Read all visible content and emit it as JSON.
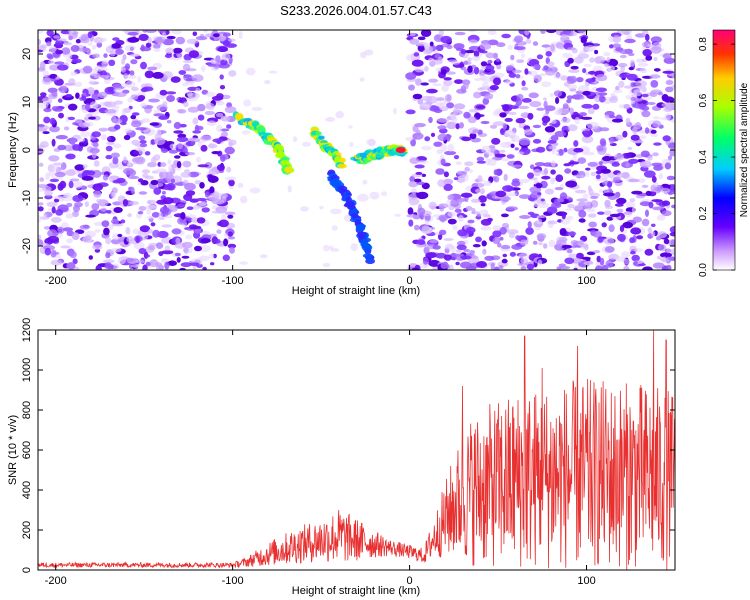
{
  "title": "S233.2026.004.01.57.C43",
  "chart_data": [
    {
      "type": "heatmap",
      "xlabel": "Height of straight line (km)",
      "ylabel": "Frequency (Hz)",
      "xlim": [
        -210,
        150
      ],
      "ylim": [
        -25,
        25
      ],
      "xticks": [
        -200,
        -100,
        0,
        100
      ],
      "yticks": [
        -20,
        -10,
        0,
        10,
        20
      ],
      "colorbar": {
        "label": "Normalized spectral amplitude",
        "range": [
          0.0,
          0.85
        ],
        "ticks": [
          "0.0",
          "0.2",
          "0.4",
          "0.6",
          "0.8"
        ]
      },
      "ridge": {
        "segments": [
          {
            "x": [
              -98,
              -84,
              -74,
              -68
            ],
            "y": [
              7,
              4,
              0,
              -5
            ]
          },
          {
            "x": [
              -55,
              -45,
              -38
            ],
            "y": [
              4,
              0,
              -3
            ]
          },
          {
            "x": [
              -30,
              -20,
              -10,
              -3
            ],
            "y": [
              -2,
              -1,
              0,
              0
            ]
          },
          {
            "x": [
              -45,
              -35,
              -28,
              -22
            ],
            "y": [
              -5,
              -10,
              -16,
              -23
            ]
          }
        ],
        "peak": {
          "x": -5,
          "y": 0
        }
      },
      "blank_region": {
        "x": [
          -100,
          0
        ]
      }
    },
    {
      "type": "line",
      "xlabel": "Height of straight line (km)",
      "ylabel": "SNR (10 * v/v)",
      "xlim": [
        -210,
        150
      ],
      "ylim": [
        0,
        1200
      ],
      "xticks": [
        -200,
        -100,
        0,
        100
      ],
      "yticks": [
        0,
        200,
        400,
        600,
        800,
        1000,
        1200
      ],
      "series": [
        {
          "name": "SNR",
          "color": "#e83030",
          "envelope": [
            {
              "x": -210,
              "mean": 25,
              "amp": 12
            },
            {
              "x": -100,
              "mean": 25,
              "amp": 12
            },
            {
              "x": -92,
              "mean": 40,
              "amp": 25
            },
            {
              "x": -80,
              "mean": 80,
              "amp": 60
            },
            {
              "x": -65,
              "mean": 120,
              "amp": 90
            },
            {
              "x": -50,
              "mean": 150,
              "amp": 110
            },
            {
              "x": -40,
              "mean": 170,
              "amp": 140
            },
            {
              "x": -30,
              "mean": 150,
              "amp": 110
            },
            {
              "x": -20,
              "mean": 130,
              "amp": 70
            },
            {
              "x": -10,
              "mean": 110,
              "amp": 40
            },
            {
              "x": 0,
              "mean": 90,
              "amp": 35
            },
            {
              "x": 8,
              "mean": 70,
              "amp": 40
            },
            {
              "x": 15,
              "mean": 180,
              "amp": 120
            },
            {
              "x": 25,
              "mean": 320,
              "amp": 260
            },
            {
              "x": 35,
              "mean": 400,
              "amp": 380
            },
            {
              "x": 60,
              "mean": 450,
              "amp": 450
            },
            {
              "x": 100,
              "mean": 480,
              "amp": 480
            },
            {
              "x": 130,
              "mean": 470,
              "amp": 470
            },
            {
              "x": 150,
              "mean": 450,
              "amp": 450
            }
          ],
          "peaks": [
            {
              "x": 30,
              "y": 920
            },
            {
              "x": 65,
              "y": 1170
            },
            {
              "x": 75,
              "y": 1010
            },
            {
              "x": 95,
              "y": 1120
            },
            {
              "x": 138,
              "y": 1200
            },
            {
              "x": 145,
              "y": 1150
            }
          ]
        }
      ]
    }
  ]
}
